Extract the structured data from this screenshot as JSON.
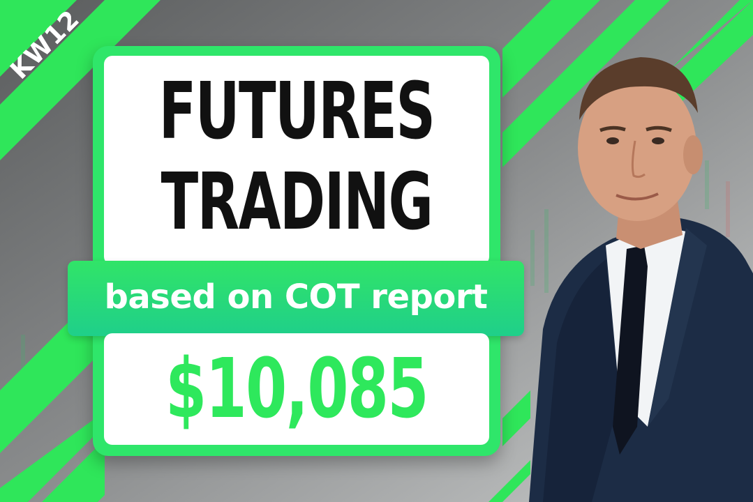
{
  "badge": {
    "label": "KW12"
  },
  "title": {
    "line1": "FUTURES",
    "line2": "TRADING"
  },
  "subtitle": "based on COT report",
  "amount": "$10,085",
  "colors": {
    "accent_green": "#2fe66a",
    "amount_green": "#2ee85c",
    "title_text": "#111111",
    "card_white": "#ffffff",
    "background_gray": "#6f7172",
    "suit_navy": "#1c2c45"
  },
  "person": {
    "description_icon": "businessman-portrait"
  }
}
